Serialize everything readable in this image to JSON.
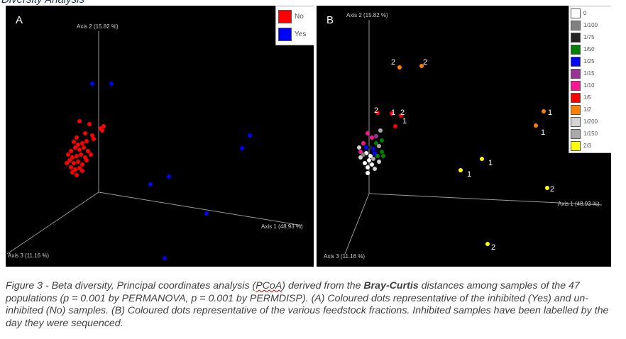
{
  "header_fragment": "Diversity Analysis",
  "panel_a": {
    "letter": "A",
    "axis_labels": {
      "axis1": "Axis 1 (48.93 %)",
      "axis2": "Axis 2 (15.82 %)",
      "axis3": "Axis 3 (11.16 %)"
    },
    "legend": [
      {
        "label": "No",
        "color": "#ff0000"
      },
      {
        "label": "Yes",
        "color": "#0000ff"
      }
    ]
  },
  "panel_b": {
    "letter": "B",
    "axis_labels": {
      "axis1": "Axis 1 (48.93 %)",
      "axis2": "Axis 2 (15.82 %)",
      "axis3": "Axis 3 (11.16 %)"
    },
    "legend": [
      {
        "label": "0",
        "color": "#ffffff"
      },
      {
        "label": "1/100",
        "color": "#808080"
      },
      {
        "label": "1/75",
        "color": "#222222"
      },
      {
        "label": "1/50",
        "color": "#008000"
      },
      {
        "label": "1/25",
        "color": "#0000ff"
      },
      {
        "label": "1/15",
        "color": "#993399"
      },
      {
        "label": "1/10",
        "color": "#ff1493"
      },
      {
        "label": "1/5",
        "color": "#ff0000"
      },
      {
        "label": "1/2",
        "color": "#ff7f00"
      },
      {
        "label": "1/200",
        "color": "#d3d3d3"
      },
      {
        "label": "1/150",
        "color": "#a9a9a9"
      },
      {
        "label": "2/3",
        "color": "#ffff00"
      }
    ]
  },
  "caption": {
    "part1": "Figure 3 - Beta diversity, Principal coordinates analysis (",
    "pcoa": "PCoA",
    "part2": ") derived from the ",
    "bold": "Bray-Curtis",
    "part3": " distances among samples of the 47 populations (p = 0.001 by PERMANOVA, p = 0.001 by PERMDISP). (A) Coloured dots representative of the inhibited (Yes) and un-inhibited (No) samples. (B) Coloured dots representative of the various feedstock fractions. Inhibited samples have been labelled by the day they were sequenced."
  }
}
